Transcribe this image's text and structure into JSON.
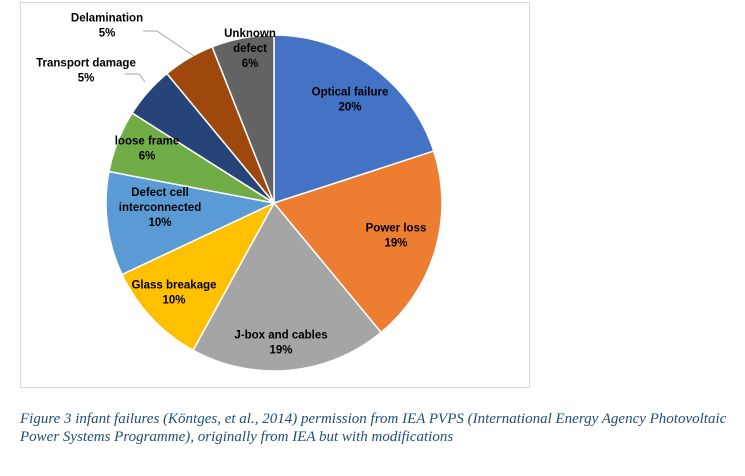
{
  "chart_data": {
    "type": "pie",
    "slices": [
      {
        "label": "Optical failure",
        "label_lines": [
          "Optical failure"
        ],
        "value": 20,
        "value_label": "20%",
        "color": "#4472c4"
      },
      {
        "label": "Power loss",
        "label_lines": [
          "Power loss"
        ],
        "value": 19,
        "value_label": "19%",
        "color": "#ed7d31"
      },
      {
        "label": "J-box and cables",
        "label_lines": [
          "J-box and cables"
        ],
        "value": 19,
        "value_label": "19%",
        "color": "#a5a5a5"
      },
      {
        "label": "Glass breakage",
        "label_lines": [
          "Glass breakage"
        ],
        "value": 10,
        "value_label": "10%",
        "color": "#ffc000"
      },
      {
        "label": "Defect cell interconnected",
        "label_lines": [
          "Defect cell",
          "interconnected"
        ],
        "value": 10,
        "value_label": "10%",
        "color": "#5b9bd5"
      },
      {
        "label": "loose frame",
        "label_lines": [
          "loose frame"
        ],
        "value": 6,
        "value_label": "6%",
        "color": "#70ad47"
      },
      {
        "label": "Transport damage",
        "label_lines": [
          "Transport damage"
        ],
        "value": 5,
        "value_label": "5%",
        "color": "#264478"
      },
      {
        "label": "Delamination",
        "label_lines": [
          "Delamination"
        ],
        "value": 5,
        "value_label": "5%",
        "color": "#9e480e"
      },
      {
        "label": "Unknown defect",
        "label_lines": [
          "Unknown",
          "defect"
        ],
        "value": 6,
        "value_label": "6%",
        "color": "#636363"
      }
    ],
    "start_angle": "12 o'clock",
    "direction": "clockwise",
    "legend": "none"
  },
  "caption": "Figure 3 infant failures (Köntges, et al., 2014) permission from IEA PVPS (International Energy Agency Photovoltaic Power Systems Programme), originally from IEA but with modifications"
}
